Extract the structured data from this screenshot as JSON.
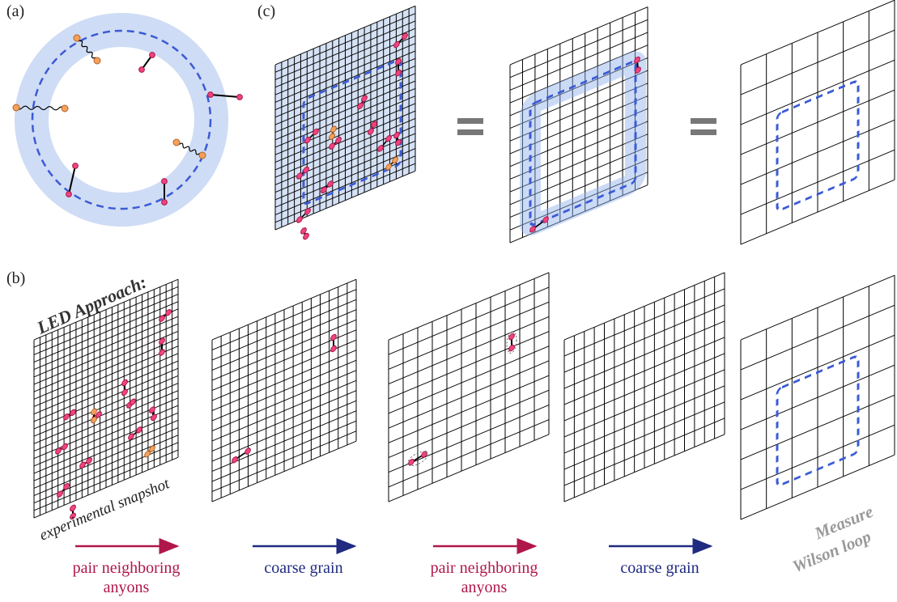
{
  "panel_labels": {
    "a": "(a)",
    "b": "(b)",
    "c": "(c)"
  },
  "led_title": "LED Approach:",
  "snapshot_label": "experimental snapshot",
  "steps": [
    {
      "lines": [
        "pair neighboring",
        "anyons"
      ]
    },
    {
      "lines": [
        "coarse grain"
      ]
    },
    {
      "lines": [
        "pair neighboring",
        "anyons"
      ]
    },
    {
      "lines": [
        "coarse grain"
      ]
    }
  ],
  "measure": [
    "Measure",
    "Wilson loop"
  ]
}
